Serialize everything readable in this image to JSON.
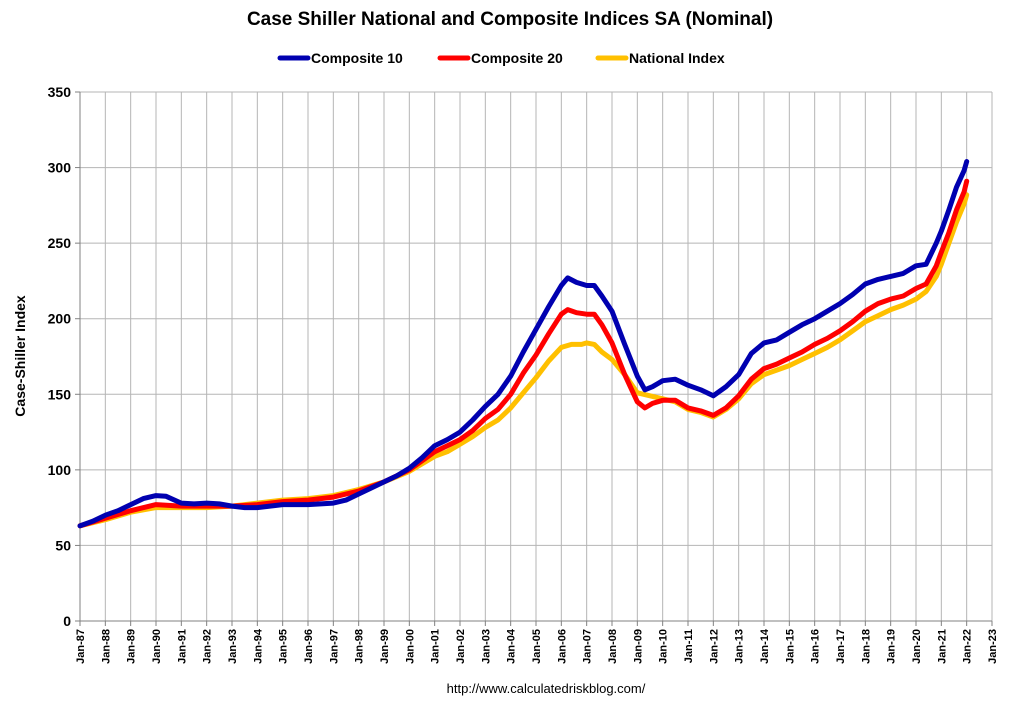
{
  "chart_data": {
    "type": "line",
    "title": "Case Shiller National and Composite Indices SA (Nominal)",
    "ylabel": "Case-Shiller Index",
    "xlabel": "",
    "source": "http://www.calculatedriskblog.com/",
    "ylim": [
      0,
      350
    ],
    "yticks": [
      0,
      50,
      100,
      150,
      200,
      250,
      300,
      350
    ],
    "xlim": [
      1987,
      2023
    ],
    "xtick_labels": [
      "Jan-87",
      "Jan-88",
      "Jan-89",
      "Jan-90",
      "Jan-91",
      "Jan-92",
      "Jan-93",
      "Jan-94",
      "Jan-95",
      "Jan-96",
      "Jan-97",
      "Jan-98",
      "Jan-99",
      "Jan-00",
      "Jan-01",
      "Jan-02",
      "Jan-03",
      "Jan-04",
      "Jan-05",
      "Jan-06",
      "Jan-07",
      "Jan-08",
      "Jan-09",
      "Jan-10",
      "Jan-11",
      "Jan-12",
      "Jan-13",
      "Jan-14",
      "Jan-15",
      "Jan-16",
      "Jan-17",
      "Jan-18",
      "Jan-19",
      "Jan-20",
      "Jan-21",
      "Jan-22",
      "Jan-23"
    ],
    "xtick_values": [
      1987,
      1988,
      1989,
      1990,
      1991,
      1992,
      1993,
      1994,
      1995,
      1996,
      1997,
      1998,
      1999,
      2000,
      2001,
      2002,
      2003,
      2004,
      2005,
      2006,
      2007,
      2008,
      2009,
      2010,
      2011,
      2012,
      2013,
      2014,
      2015,
      2016,
      2017,
      2018,
      2019,
      2020,
      2021,
      2022,
      2023
    ],
    "grid": true,
    "legend_position": "top-center",
    "series": [
      {
        "name": "Composite 10",
        "color": "#0000B0",
        "points": [
          [
            1987,
            63
          ],
          [
            1987.5,
            66
          ],
          [
            1988,
            70
          ],
          [
            1988.5,
            73
          ],
          [
            1989,
            77
          ],
          [
            1989.5,
            81
          ],
          [
            1990,
            83
          ],
          [
            1990.4,
            82.5
          ],
          [
            1991,
            78
          ],
          [
            1991.5,
            77.5
          ],
          [
            1992,
            78
          ],
          [
            1992.5,
            77.5
          ],
          [
            1993,
            76
          ],
          [
            1993.5,
            75
          ],
          [
            1994,
            75
          ],
          [
            1994.5,
            76
          ],
          [
            1995,
            77
          ],
          [
            1995.5,
            77
          ],
          [
            1996,
            77
          ],
          [
            1996.5,
            77.5
          ],
          [
            1997,
            78
          ],
          [
            1997.5,
            80
          ],
          [
            1998,
            84
          ],
          [
            1998.5,
            88
          ],
          [
            1999,
            92
          ],
          [
            1999.5,
            96
          ],
          [
            2000,
            101
          ],
          [
            2000.5,
            108
          ],
          [
            2001,
            116
          ],
          [
            2001.5,
            120
          ],
          [
            2002,
            125
          ],
          [
            2002.5,
            133
          ],
          [
            2003,
            142
          ],
          [
            2003.5,
            150
          ],
          [
            2004,
            162
          ],
          [
            2004.5,
            178
          ],
          [
            2005,
            193
          ],
          [
            2005.5,
            208
          ],
          [
            2006,
            222
          ],
          [
            2006.25,
            227
          ],
          [
            2006.6,
            224
          ],
          [
            2007,
            222
          ],
          [
            2007.3,
            222
          ],
          [
            2007.6,
            215
          ],
          [
            2008,
            205
          ],
          [
            2008.5,
            183
          ],
          [
            2009,
            162
          ],
          [
            2009.3,
            153
          ],
          [
            2009.6,
            155
          ],
          [
            2010,
            159
          ],
          [
            2010.5,
            160
          ],
          [
            2011,
            156
          ],
          [
            2011.5,
            153
          ],
          [
            2012,
            149
          ],
          [
            2012.5,
            155
          ],
          [
            2013,
            163
          ],
          [
            2013.5,
            177
          ],
          [
            2014,
            184
          ],
          [
            2014.5,
            186
          ],
          [
            2015,
            191
          ],
          [
            2015.5,
            196
          ],
          [
            2016,
            200
          ],
          [
            2016.5,
            205
          ],
          [
            2017,
            210
          ],
          [
            2017.5,
            216
          ],
          [
            2018,
            223
          ],
          [
            2018.5,
            226
          ],
          [
            2019,
            228
          ],
          [
            2019.5,
            230
          ],
          [
            2020,
            235
          ],
          [
            2020.4,
            236
          ],
          [
            2020.8,
            250
          ],
          [
            2021,
            258
          ],
          [
            2021.3,
            272
          ],
          [
            2021.6,
            287
          ],
          [
            2021.9,
            298
          ],
          [
            2022,
            304
          ]
        ]
      },
      {
        "name": "Composite 20",
        "color": "#FF0000",
        "points": [
          [
            1987,
            63
          ],
          [
            1988,
            68
          ],
          [
            1989,
            73
          ],
          [
            1990,
            77
          ],
          [
            1991,
            76
          ],
          [
            1992,
            76
          ],
          [
            1993,
            76
          ],
          [
            1994,
            77
          ],
          [
            1995,
            79
          ],
          [
            1996,
            80
          ],
          [
            1997,
            82
          ],
          [
            1998,
            86
          ],
          [
            1999,
            92
          ],
          [
            2000,
            100
          ],
          [
            2000.5,
            106
          ],
          [
            2001,
            112
          ],
          [
            2001.5,
            116
          ],
          [
            2002,
            120
          ],
          [
            2002.5,
            126
          ],
          [
            2003,
            134
          ],
          [
            2003.5,
            140
          ],
          [
            2004,
            150
          ],
          [
            2004.5,
            164
          ],
          [
            2005,
            176
          ],
          [
            2005.5,
            190
          ],
          [
            2006,
            203
          ],
          [
            2006.25,
            206
          ],
          [
            2006.6,
            204
          ],
          [
            2007,
            203
          ],
          [
            2007.3,
            203
          ],
          [
            2007.6,
            196
          ],
          [
            2008,
            184
          ],
          [
            2008.5,
            163
          ],
          [
            2009,
            145
          ],
          [
            2009.3,
            141
          ],
          [
            2009.6,
            144
          ],
          [
            2010,
            146
          ],
          [
            2010.5,
            146
          ],
          [
            2011,
            141
          ],
          [
            2011.5,
            139
          ],
          [
            2012,
            136
          ],
          [
            2012.5,
            141
          ],
          [
            2013,
            149
          ],
          [
            2013.5,
            160
          ],
          [
            2014,
            167
          ],
          [
            2014.5,
            170
          ],
          [
            2015,
            174
          ],
          [
            2015.5,
            178
          ],
          [
            2016,
            183
          ],
          [
            2016.5,
            187
          ],
          [
            2017,
            192
          ],
          [
            2017.5,
            198
          ],
          [
            2018,
            205
          ],
          [
            2018.5,
            210
          ],
          [
            2019,
            213
          ],
          [
            2019.5,
            215
          ],
          [
            2020,
            220
          ],
          [
            2020.4,
            223
          ],
          [
            2020.8,
            235
          ],
          [
            2021,
            244
          ],
          [
            2021.3,
            257
          ],
          [
            2021.6,
            272
          ],
          [
            2021.9,
            284
          ],
          [
            2022,
            291
          ]
        ]
      },
      {
        "name": "National Index",
        "color": "#FFC000",
        "points": [
          [
            1987,
            63
          ],
          [
            1988,
            67
          ],
          [
            1989,
            72
          ],
          [
            1990,
            75
          ],
          [
            1991,
            75
          ],
          [
            1992,
            75
          ],
          [
            1993,
            76
          ],
          [
            1994,
            78
          ],
          [
            1995,
            80
          ],
          [
            1996,
            81
          ],
          [
            1997,
            83
          ],
          [
            1998,
            87
          ],
          [
            1999,
            92
          ],
          [
            2000,
            99
          ],
          [
            2000.5,
            104
          ],
          [
            2001,
            109
          ],
          [
            2001.5,
            112
          ],
          [
            2002,
            117
          ],
          [
            2002.5,
            122
          ],
          [
            2003,
            128
          ],
          [
            2003.5,
            133
          ],
          [
            2004,
            141
          ],
          [
            2004.5,
            151
          ],
          [
            2005,
            161
          ],
          [
            2005.5,
            172
          ],
          [
            2006,
            181
          ],
          [
            2006.4,
            183
          ],
          [
            2006.8,
            183
          ],
          [
            2007,
            184
          ],
          [
            2007.3,
            183
          ],
          [
            2007.6,
            178
          ],
          [
            2008,
            173
          ],
          [
            2008.5,
            163
          ],
          [
            2009,
            151
          ],
          [
            2009.5,
            149
          ],
          [
            2010,
            147
          ],
          [
            2010.5,
            145
          ],
          [
            2011,
            140
          ],
          [
            2011.5,
            138
          ],
          [
            2012,
            135
          ],
          [
            2012.5,
            140
          ],
          [
            2013,
            147
          ],
          [
            2013.5,
            157
          ],
          [
            2014,
            163
          ],
          [
            2014.5,
            166
          ],
          [
            2015,
            169
          ],
          [
            2015.5,
            173
          ],
          [
            2016,
            177
          ],
          [
            2016.5,
            181
          ],
          [
            2017,
            186
          ],
          [
            2017.5,
            192
          ],
          [
            2018,
            198
          ],
          [
            2018.5,
            202
          ],
          [
            2019,
            206
          ],
          [
            2019.5,
            209
          ],
          [
            2020,
            213
          ],
          [
            2020.4,
            218
          ],
          [
            2020.8,
            228
          ],
          [
            2021,
            236
          ],
          [
            2021.3,
            250
          ],
          [
            2021.6,
            264
          ],
          [
            2021.9,
            276
          ],
          [
            2022,
            282
          ]
        ]
      }
    ]
  }
}
